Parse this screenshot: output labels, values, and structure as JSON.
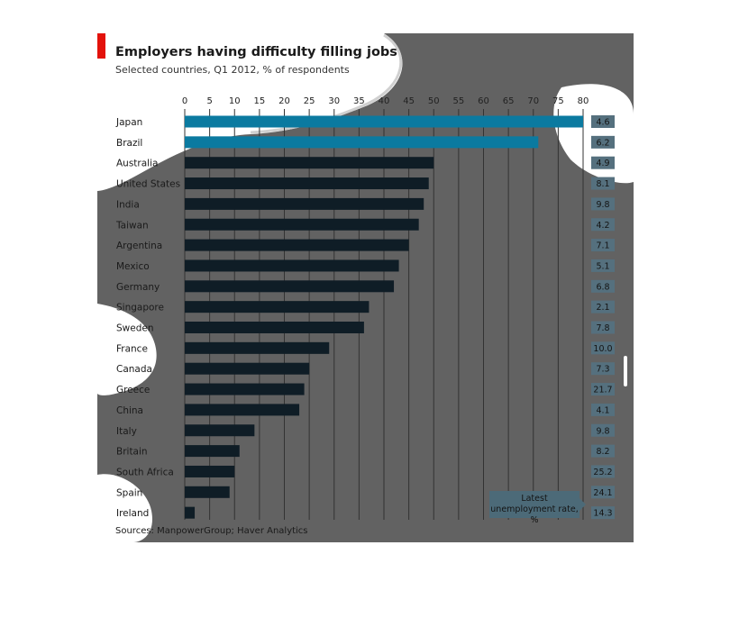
{
  "header": {
    "title": "Employers having difficulty filling jobs",
    "subtitle": "Selected countries, Q1 2012, % of respondents"
  },
  "footer": {
    "source": "Sources: ManpowerGroup; Haver Analytics"
  },
  "legend": {
    "unemployment_label": "Latest unemployment rate, %"
  },
  "colors": {
    "highlight_bar": "#0b7aa0",
    "bar": "#0f1d26",
    "panel": "#626262",
    "brand_red": "#e3120b",
    "unemployment_box": "#4c6a78"
  },
  "chart_data": {
    "type": "bar",
    "orientation": "horizontal",
    "title": "Employers having difficulty filling jobs",
    "subtitle": "Selected countries, Q1 2012, % of respondents",
    "xlim": [
      0,
      80
    ],
    "xticks": [
      0,
      5,
      10,
      15,
      20,
      25,
      30,
      35,
      40,
      45,
      50,
      55,
      60,
      65,
      70,
      75,
      80
    ],
    "grid": true,
    "categories": [
      "Japan",
      "Brazil",
      "Australia",
      "United States",
      "India",
      "Taiwan",
      "Argentina",
      "Mexico",
      "Germany",
      "Singapore",
      "Sweden",
      "France",
      "Canada",
      "Greece",
      "China",
      "Italy",
      "Britain",
      "South Africa",
      "Spain",
      "Ireland"
    ],
    "values": [
      80,
      71,
      50,
      49,
      48,
      47,
      45,
      43,
      42,
      37,
      36,
      29,
      25,
      24,
      23,
      14,
      11,
      10,
      9,
      2
    ],
    "highlighted": [
      "Japan",
      "Brazil"
    ],
    "unemployment_rates": [
      "4.6",
      "6.2",
      "4.9",
      "8.1",
      "9.8",
      "4.2",
      "7.1",
      "5.1",
      "6.8",
      "2.1",
      "7.8",
      "10.0",
      "7.3",
      "21.7",
      "4.1",
      "9.8",
      "8.2",
      "25.2",
      "24.1",
      "14.3"
    ],
    "unemployment_label": "Latest unemployment rate, %"
  }
}
